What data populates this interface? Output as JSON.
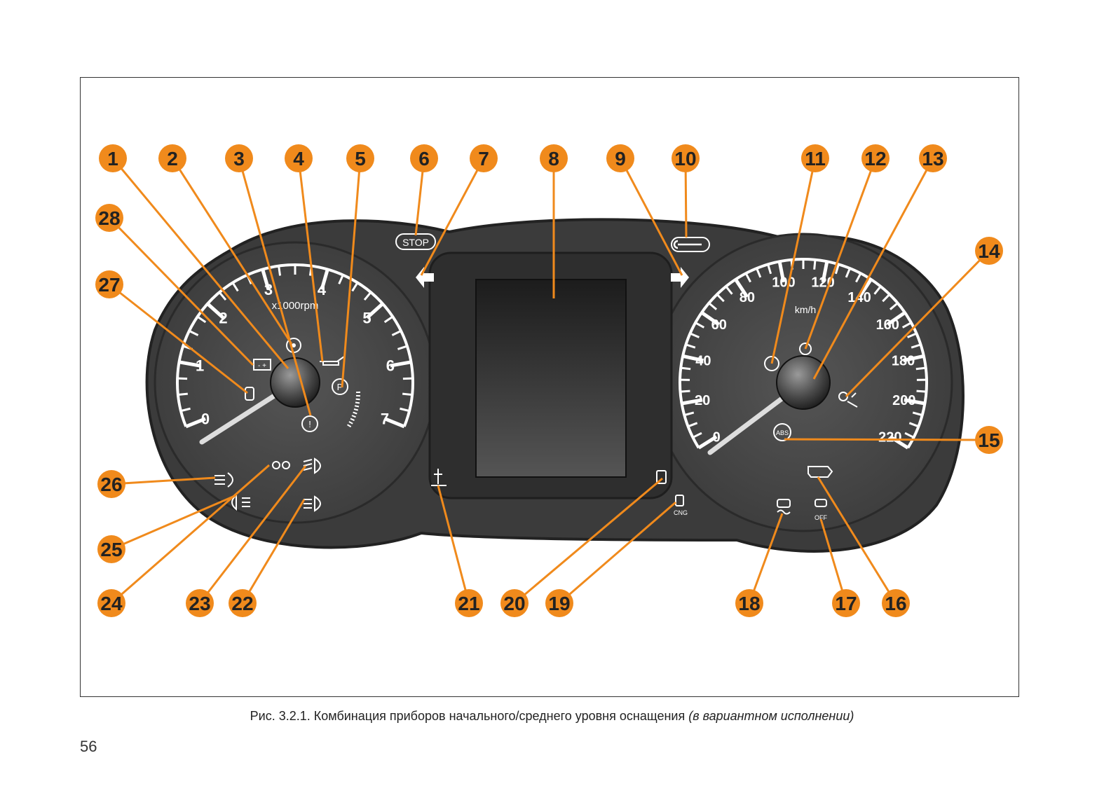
{
  "caption": {
    "main": "Рис. 3.2.1. Комбинация приборов начального/среднего уровня оснащения",
    "note": "(в вариантном исполнении)"
  },
  "page_number": "56",
  "tachometer": {
    "unit_label": "x1000rpm",
    "labels": [
      "0",
      "1",
      "2",
      "3",
      "4",
      "5",
      "6",
      "7"
    ],
    "needle_value": 0
  },
  "speedometer": {
    "unit_label": "km/h",
    "labels": [
      "0",
      "20",
      "40",
      "60",
      "80",
      "100",
      "120",
      "140",
      "160",
      "180",
      "200",
      "220"
    ],
    "needle_value": 0
  },
  "indicators": {
    "stop": "STOP",
    "abs": "ABS",
    "cng": "CNG",
    "esc_off": "OFF",
    "parking_brake": "P",
    "brake_warning": "!"
  },
  "callouts": [
    "1",
    "2",
    "3",
    "4",
    "5",
    "6",
    "7",
    "8",
    "9",
    "10",
    "11",
    "12",
    "13",
    "14",
    "15",
    "16",
    "17",
    "18",
    "19",
    "20",
    "21",
    "22",
    "23",
    "24",
    "25",
    "26",
    "27",
    "28"
  ],
  "colors": {
    "callout": "#f08a1c",
    "callout_text": "#222222",
    "cluster_body": "#3a3a3a",
    "dial_face": "#4a4a4a",
    "markings": "#ffffff"
  }
}
